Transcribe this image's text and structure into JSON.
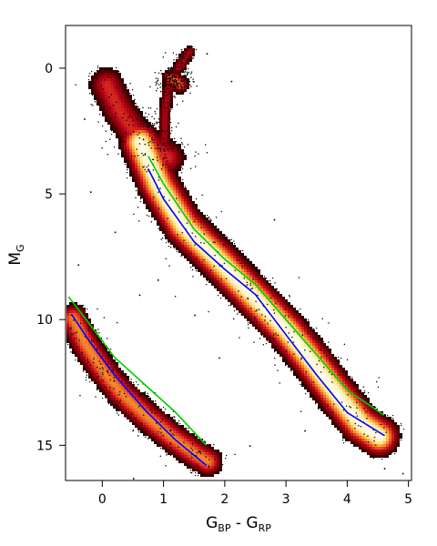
{
  "chart_data": {
    "type": "scatter",
    "title": "",
    "xlabel": {
      "main_1": "G",
      "sub_1": "BP",
      "sep": " - ",
      "main_2": "G",
      "sub_2": "RP"
    },
    "ylabel": {
      "main": "M",
      "sub": "G"
    },
    "xlim": [
      -0.6,
      5.05
    ],
    "ylim": [
      16.4,
      -1.7
    ],
    "y_inverted": true,
    "grid": false,
    "x_ticks": [
      {
        "value": 0,
        "label": "0"
      },
      {
        "value": 1,
        "label": "1"
      },
      {
        "value": 2,
        "label": "2"
      },
      {
        "value": 3,
        "label": "3"
      },
      {
        "value": 4,
        "label": "4"
      },
      {
        "value": 5,
        "label": "5"
      }
    ],
    "y_ticks": [
      {
        "value": 0,
        "label": "0"
      },
      {
        "value": 5,
        "label": "5"
      },
      {
        "value": 10,
        "label": "10"
      },
      {
        "value": 15,
        "label": "15"
      }
    ],
    "density": {
      "colormap": [
        "#1a0000",
        "#6b0000",
        "#b3001b",
        "#e8401f",
        "#f7a12e",
        "#fde89a",
        "#fffbe8"
      ],
      "scatter_color": "#000000",
      "ridges": [
        {
          "name": "main-sequence",
          "halfwidth": 0.2,
          "weight": 1.0,
          "points": [
            [
              0.6,
              2.9
            ],
            [
              0.9,
              4.6
            ],
            [
              1.3,
              6.2
            ],
            [
              1.8,
              7.4
            ],
            [
              2.2,
              8.4
            ],
            [
              2.6,
              9.4
            ],
            [
              3.0,
              10.4
            ],
            [
              3.4,
              11.6
            ],
            [
              3.8,
              12.9
            ],
            [
              4.2,
              14.1
            ],
            [
              4.5,
              14.6
            ]
          ]
        },
        {
          "name": "turnoff-subgiant",
          "halfwidth": 0.2,
          "weight": 0.55,
          "points": [
            [
              0.05,
              0.6
            ],
            [
              0.25,
              1.6
            ],
            [
              0.5,
              2.5
            ],
            [
              0.8,
              3.1
            ],
            [
              1.05,
              3.5
            ]
          ]
        },
        {
          "name": "red-giant-branch",
          "halfwidth": 0.08,
          "weight": 0.45,
          "points": [
            [
              0.95,
              3.5
            ],
            [
              1.0,
              2.6
            ],
            [
              1.0,
              1.7
            ],
            [
              1.05,
              0.8
            ],
            [
              1.15,
              0.3
            ],
            [
              1.2,
              0.0
            ],
            [
              1.4,
              -0.7
            ]
          ]
        },
        {
          "name": "red-clump",
          "halfwidth": 0.1,
          "weight": 0.65,
          "points": [
            [
              1.1,
              0.35
            ],
            [
              1.25,
              0.6
            ]
          ]
        },
        {
          "name": "white-dwarf-sequence",
          "halfwidth": 0.16,
          "weight": 0.7,
          "points": [
            [
              -0.5,
              9.9
            ],
            [
              -0.3,
              10.9
            ],
            [
              0.0,
              12.0
            ],
            [
              0.3,
              12.9
            ],
            [
              0.7,
              13.8
            ],
            [
              1.1,
              14.6
            ],
            [
              1.5,
              15.3
            ],
            [
              1.7,
              15.6
            ]
          ]
        }
      ],
      "outliers": [
        [
          -0.3,
          2.0
        ],
        [
          0.2,
          6.5
        ],
        [
          -0.4,
          7.8
        ],
        [
          0.6,
          9.0
        ],
        [
          2.1,
          0.5
        ],
        [
          1.7,
          -0.6
        ],
        [
          1.5,
          9.8
        ],
        [
          3.3,
          14.4
        ],
        [
          4.6,
          15.9
        ],
        [
          2.4,
          15.0
        ],
        [
          0.5,
          16.3
        ],
        [
          4.9,
          16.1
        ],
        [
          -0.2,
          4.9
        ],
        [
          1.9,
          11.5
        ],
        [
          0.9,
          8.4
        ],
        [
          2.8,
          6.0
        ]
      ]
    },
    "series": [
      {
        "color": "#00cc00",
        "points": [
          [
            0.75,
            3.5
          ],
          [
            1.0,
            4.6
          ],
          [
            1.5,
            6.4
          ],
          [
            2.0,
            7.6
          ],
          [
            2.5,
            8.6
          ],
          [
            3.0,
            10.0
          ],
          [
            3.5,
            11.4
          ],
          [
            4.0,
            12.8
          ],
          [
            4.6,
            13.8
          ]
        ]
      },
      {
        "color": "#0000ff",
        "points": [
          [
            0.75,
            4.0
          ],
          [
            1.0,
            5.2
          ],
          [
            1.5,
            6.9
          ],
          [
            2.0,
            8.0
          ],
          [
            2.5,
            9.0
          ],
          [
            3.0,
            10.6
          ],
          [
            3.5,
            12.2
          ],
          [
            4.0,
            13.7
          ],
          [
            4.6,
            14.6
          ]
        ]
      },
      {
        "color": "#00cc00",
        "points": [
          [
            -0.55,
            9.1
          ],
          [
            -0.2,
            10.2
          ],
          [
            0.2,
            11.5
          ],
          [
            0.7,
            12.6
          ],
          [
            1.2,
            13.7
          ],
          [
            1.7,
            15.0
          ]
        ]
      },
      {
        "color": "#0000ff",
        "points": [
          [
            -0.5,
            9.8
          ],
          [
            -0.2,
            10.9
          ],
          [
            0.2,
            12.2
          ],
          [
            0.7,
            13.6
          ],
          [
            1.2,
            14.8
          ],
          [
            1.7,
            15.8
          ]
        ]
      }
    ]
  }
}
